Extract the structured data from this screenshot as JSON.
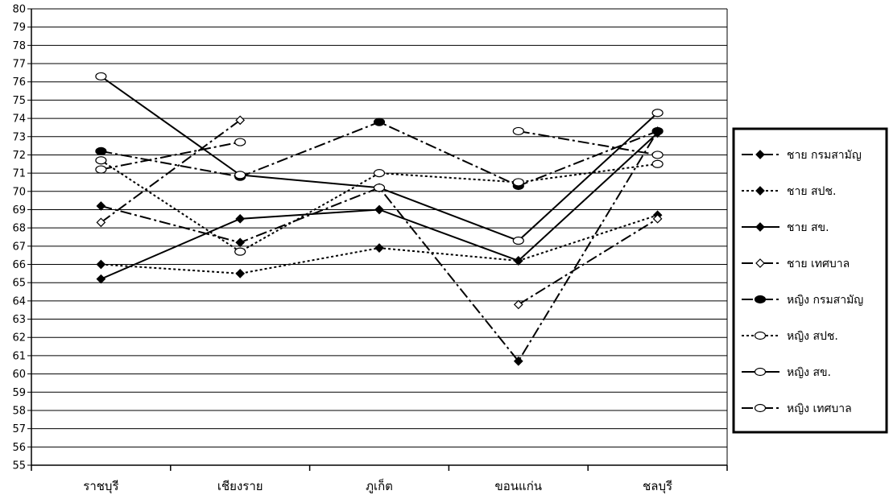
{
  "chart_data": {
    "type": "line",
    "categories": [
      "ราชบุรี",
      "เชียงราย",
      "ภูเก็ต",
      "ขอนแก่น",
      "ชลบุรี"
    ],
    "ylim": [
      55,
      80
    ],
    "y_ticks": [
      55,
      56,
      57,
      58,
      59,
      60,
      61,
      62,
      63,
      64,
      65,
      66,
      67,
      68,
      69,
      70,
      71,
      72,
      73,
      74,
      75,
      76,
      77,
      78,
      79,
      80
    ],
    "grid": true,
    "legend_position": "right",
    "series": [
      {
        "name": "ชาย กรมสามัญ",
        "values": [
          69.2,
          67.2,
          70.2,
          60.7,
          73.3
        ],
        "dash": "dashdot",
        "marker": "diamond",
        "fill": "#000000"
      },
      {
        "name": "ชาย สปช.",
        "values": [
          66.0,
          65.5,
          66.9,
          66.2,
          68.7
        ],
        "dash": "dotted",
        "marker": "diamond",
        "fill": "#000000"
      },
      {
        "name": "ชาย สข.",
        "values": [
          65.2,
          68.5,
          69.0,
          66.2,
          73.2
        ],
        "dash": "solid",
        "marker": "diamond",
        "fill": "#000000"
      },
      {
        "name": "ชาย เทศบาล",
        "values": [
          68.3,
          73.9,
          null,
          63.8,
          68.5
        ],
        "dash": "dashdot",
        "marker": "diamond",
        "fill": "#ffffff"
      },
      {
        "name": "หญิง กรมสามัญ",
        "values": [
          72.2,
          70.8,
          73.8,
          70.3,
          73.3
        ],
        "dash": "dashdot",
        "marker": "circle",
        "fill": "#000000"
      },
      {
        "name": "หญิง สปช.",
        "values": [
          71.7,
          66.7,
          71.0,
          70.5,
          71.5
        ],
        "dash": "dotted",
        "marker": "circle",
        "fill": "#ffffff"
      },
      {
        "name": "หญิง สข.",
        "values": [
          76.3,
          70.9,
          70.2,
          67.3,
          74.3
        ],
        "dash": "solid",
        "marker": "circle",
        "fill": "#ffffff"
      },
      {
        "name": "หญิง เทศบาล",
        "values": [
          71.2,
          72.7,
          null,
          73.3,
          72.0
        ],
        "dash": "dashdot",
        "marker": "circle",
        "fill": "#ffffff"
      }
    ]
  }
}
